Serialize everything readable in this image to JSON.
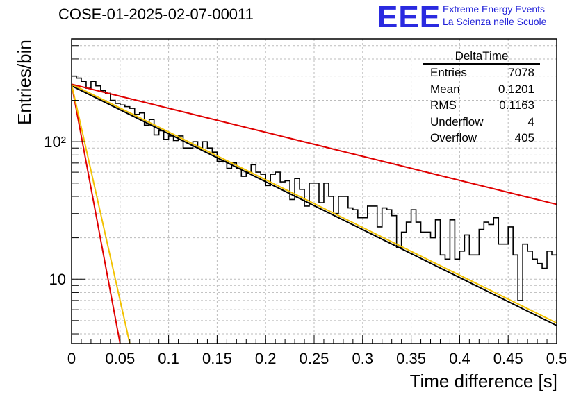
{
  "title": "COSE-01-2025-02-07-00011",
  "logo": {
    "text": "EEE",
    "line1": "Extreme Energy Events",
    "line2": "La Scienza nelle Scuole"
  },
  "stats": {
    "name": "DeltaTime",
    "rows": [
      {
        "label": "Entries",
        "value": "7078"
      },
      {
        "label": "Mean",
        "value": "0.1201"
      },
      {
        "label": "RMS",
        "value": "0.1163"
      },
      {
        "label": "Underflow",
        "value": "4"
      },
      {
        "label": "Overflow",
        "value": "405"
      }
    ]
  },
  "chart_data": {
    "type": "histogram",
    "xlabel": "Time difference [s]",
    "ylabel": "Entries/bin",
    "xlim": [
      0,
      0.5
    ],
    "ylim": [
      3.4,
      560
    ],
    "log_y": true,
    "grid": true,
    "x_ticks": [
      "0",
      "0.05",
      "0.1",
      "0.15",
      "0.2",
      "0.25",
      "0.3",
      "0.35",
      "0.4",
      "0.45",
      "0.5"
    ],
    "y_ticks": [
      "10",
      "10²"
    ],
    "bin_width": 0.005,
    "bin_values": [
      300,
      290,
      275,
      245,
      275,
      255,
      235,
      225,
      200,
      190,
      185,
      180,
      175,
      158,
      162,
      132,
      145,
      112,
      120,
      104,
      110,
      102,
      110,
      90,
      90,
      100,
      90,
      100,
      90,
      84,
      72,
      72,
      64,
      70,
      64,
      56,
      60,
      68,
      60,
      58,
      48,
      58,
      60,
      51,
      52,
      38,
      54,
      45,
      34,
      50,
      50,
      36,
      50,
      40,
      30,
      40,
      40,
      33,
      32,
      28,
      28,
      34,
      34,
      24,
      33,
      32,
      29,
      17,
      22,
      26,
      32,
      26,
      22,
      22,
      20,
      27,
      15,
      14,
      27,
      14,
      16,
      21,
      15,
      15,
      23,
      26,
      25,
      28,
      18,
      18,
      24,
      15,
      7,
      18,
      16,
      14,
      13,
      12,
      16,
      15
    ],
    "fits": [
      {
        "color": "#000000",
        "type": "exp",
        "x0": 0,
        "x1": 0.5,
        "y0": 255,
        "y1": 4.6
      },
      {
        "color": "#f2c200",
        "type": "exp",
        "x0": 0,
        "x1": 0.5,
        "y0": 262,
        "y1": 4.8
      },
      {
        "color": "#e00000",
        "type": "exp",
        "x0": 0,
        "x1": 0.5,
        "y0": 262,
        "y1": 35
      },
      {
        "color": "#e00000",
        "type": "exp",
        "x0": 0,
        "x1": 0.05,
        "y0": 262,
        "y1": 3.4
      },
      {
        "color": "#f2c200",
        "type": "exp",
        "x0": 0,
        "x1": 0.06,
        "y0": 262,
        "y1": 3.4
      }
    ]
  }
}
